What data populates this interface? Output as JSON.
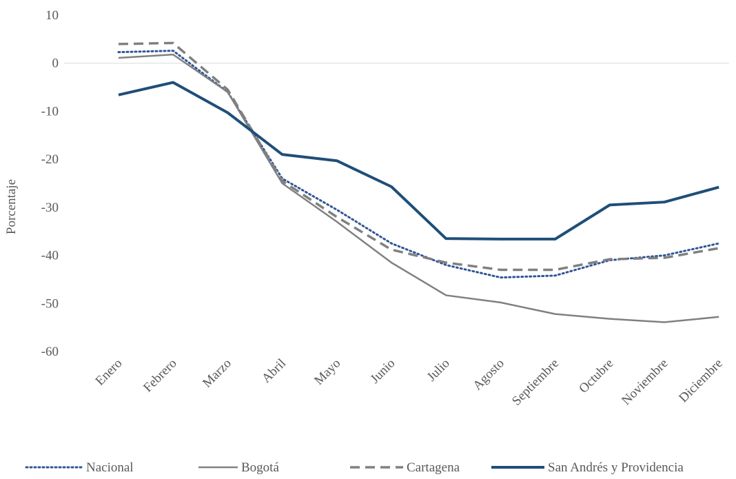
{
  "chart_data": {
    "type": "line",
    "y_label": "Porcentaje",
    "categories": [
      "Enero",
      "Febrero",
      "Marzo",
      "Abril",
      "Mayo",
      "Junio",
      "Julio",
      "Agosto",
      "Septiembre",
      "Octubre",
      "Noviembre",
      "Diciembre"
    ],
    "series": [
      {
        "name": "Nacional",
        "color": "#2f5597",
        "style": "dotted",
        "values": [
          2.3,
          2.6,
          -6,
          -24,
          -30.5,
          -37.5,
          -42,
          -44.6,
          -44.2,
          -41,
          -40,
          -37.5
        ]
      },
      {
        "name": "Bogotá",
        "color": "#808080",
        "style": "thin",
        "values": [
          1.1,
          1.8,
          -6,
          -25,
          -33,
          -41.5,
          -48.3,
          -49.8,
          -52.2,
          -53.2,
          -53.9,
          -52.8
        ]
      },
      {
        "name": "Cartagena",
        "color": "#808080",
        "style": "dashed",
        "values": [
          4,
          4.2,
          -5.5,
          -24.5,
          -32,
          -38.8,
          -41.5,
          -43,
          -43,
          -40.8,
          -40.5,
          -38.5
        ]
      },
      {
        "name": "San Andrés y Providencia",
        "color": "#1f4e79",
        "style": "thick",
        "values": [
          -6.6,
          -4,
          -10.3,
          -19,
          -20.3,
          -25.7,
          -36.5,
          -36.6,
          -36.6,
          -29.5,
          -28.9,
          -25.8
        ]
      }
    ],
    "ylim": [
      -60,
      10
    ],
    "yticks": [
      10,
      0,
      -10,
      -20,
      -30,
      -40,
      -50,
      -60
    ],
    "grid": false,
    "legend": "bottom"
  }
}
